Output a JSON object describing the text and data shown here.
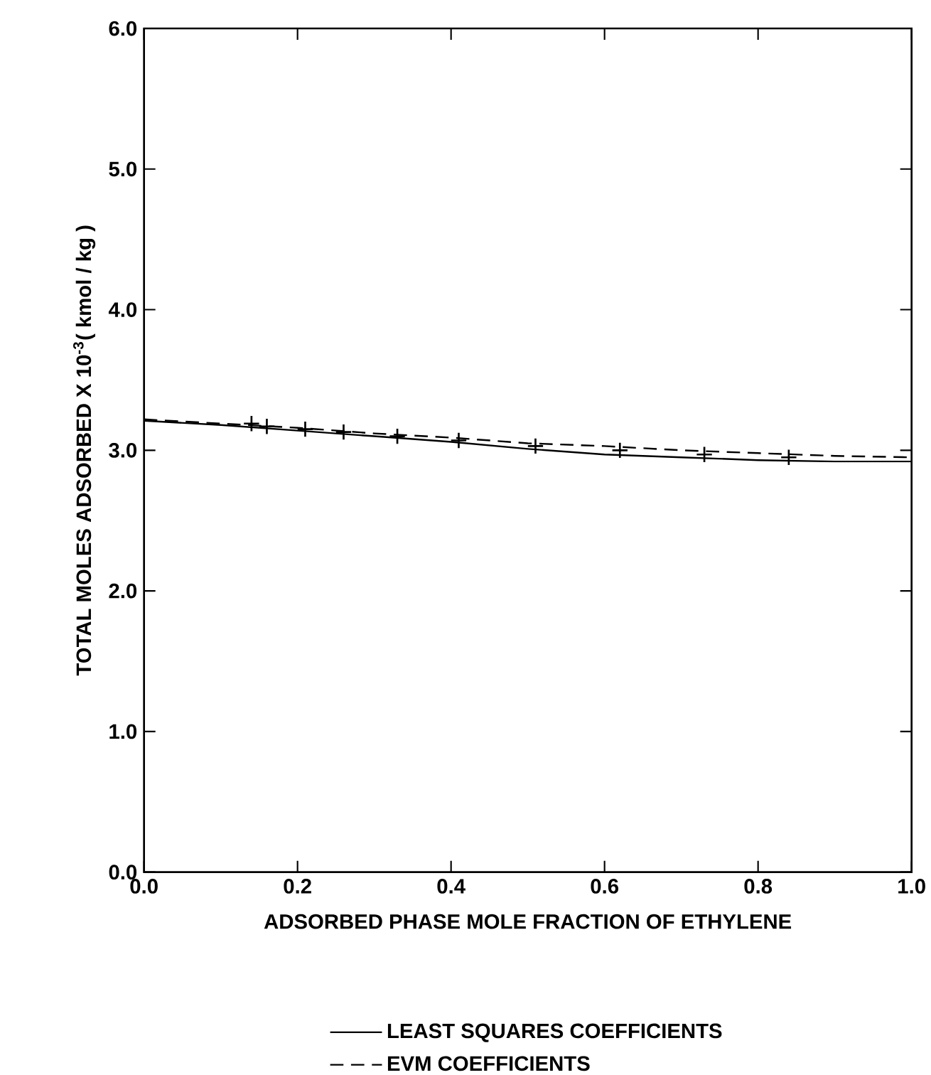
{
  "chart_data": {
    "type": "line",
    "xlabel": "ADSORBED PHASE MOLE FRACTION OF ETHYLENE",
    "ylabel": "TOTAL MOLES ADSORBED X 10$^{-3}$( kmol / kg )",
    "xlim": [
      0,
      1
    ],
    "ylim": [
      0,
      6
    ],
    "xticks": [
      {
        "value": 0,
        "label": "0.0"
      },
      {
        "value": 0.2,
        "label": "0.2"
      },
      {
        "value": 0.4,
        "label": "0.4"
      },
      {
        "value": 0.6,
        "label": "0.6"
      },
      {
        "value": 0.8,
        "label": "0.8"
      },
      {
        "value": 1,
        "label": "1.0"
      }
    ],
    "yticks": [
      {
        "value": 0,
        "label": "0.0"
      },
      {
        "value": 1,
        "label": "1.0"
      },
      {
        "value": 2,
        "label": "2.0"
      },
      {
        "value": 3,
        "label": "3.0"
      },
      {
        "value": 4,
        "label": "4.0"
      },
      {
        "value": 5,
        "label": "5.0"
      },
      {
        "value": 6,
        "label": "6.0"
      }
    ],
    "legend": "bottom",
    "grid": false,
    "series": [
      {
        "name": "LEAST SQUARES COEFFICIENTS",
        "color": "#000000",
        "line_style": "solid",
        "marker": "none",
        "x": [
          0,
          0.1,
          0.2,
          0.3,
          0.4,
          0.5,
          0.6,
          0.7,
          0.8,
          0.9,
          1.0
        ],
        "values": [
          3.21,
          3.18,
          3.14,
          3.1,
          3.06,
          3.01,
          2.97,
          2.95,
          2.93,
          2.92,
          2.92
        ]
      },
      {
        "name": "EVM COEFFICIENTS",
        "color": "#000000",
        "line_style": "dashed",
        "marker": "none",
        "x": [
          0,
          0.1,
          0.2,
          0.3,
          0.4,
          0.5,
          0.6,
          0.7,
          0.8,
          0.9,
          1.0
        ],
        "values": [
          3.22,
          3.19,
          3.16,
          3.12,
          3.09,
          3.05,
          3.03,
          3.0,
          2.98,
          2.96,
          2.95
        ]
      },
      {
        "type": "scatter",
        "color": "#000000",
        "marker": "cross",
        "x": [
          0.14,
          0.16,
          0.21,
          0.26,
          0.33,
          0.41,
          0.51,
          0.62,
          0.73,
          0.84
        ],
        "values": [
          3.19,
          3.17,
          3.15,
          3.13,
          3.1,
          3.07,
          3.03,
          3.0,
          2.97,
          2.95
        ]
      }
    ]
  }
}
